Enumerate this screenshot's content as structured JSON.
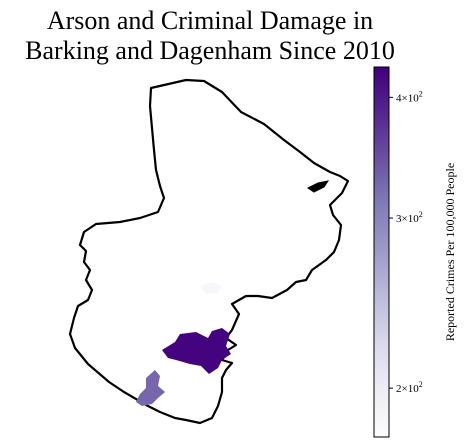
{
  "title_line1": "Arson and Criminal Damage in",
  "title_line2": "Barking and Dagenham Since 2010",
  "colorbar": {
    "label": "Reported Crimes Per 100,000 People",
    "scale": "log",
    "range": [
      178,
      430
    ],
    "colormap": [
      "#fcfbfd",
      "#efedf5",
      "#dadaeb",
      "#bcbddc",
      "#9e9ac8",
      "#807dba",
      "#6a51a3",
      "#54278f",
      "#3f007d"
    ],
    "ticks": [
      {
        "base": "2",
        "exp": "2",
        "value": 200
      },
      {
        "base": "3",
        "exp": "2",
        "value": 300
      },
      {
        "base": "4",
        "exp": "2",
        "value": 400
      }
    ]
  },
  "map": {
    "boundary_color": "#000000",
    "regions": [
      {
        "name": "high-crime-area",
        "color": "#44047f"
      },
      {
        "name": "medium-crime-area",
        "color": "#7766ae"
      },
      {
        "name": "low-crime-area",
        "color": "#f7f6fb"
      }
    ]
  }
}
